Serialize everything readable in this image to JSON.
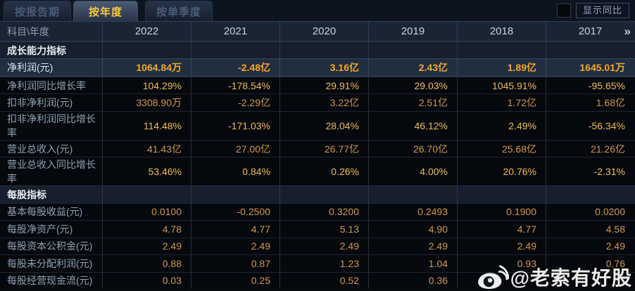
{
  "tabs": [
    {
      "label": "按报告期",
      "active": false
    },
    {
      "label": "按年度",
      "active": true
    },
    {
      "label": "按单季度",
      "active": false
    }
  ],
  "yoy_toggle": {
    "label": "显示同比",
    "checked": false
  },
  "table": {
    "corner_label": "科目\\年度",
    "years": [
      "2022",
      "2021",
      "2020",
      "2019",
      "2018",
      "2017"
    ],
    "more_icon": "»",
    "rows": [
      {
        "type": "section",
        "style": "",
        "label": "成长能力指标",
        "values": [
          "",
          "",
          "",
          "",
          "",
          ""
        ]
      },
      {
        "type": "data",
        "style": "highlight",
        "label": "净利润(元)",
        "values": [
          "1064.84万",
          "-2.48亿",
          "3.16亿",
          "2.43亿",
          "1.89亿",
          "1645.01万"
        ]
      },
      {
        "type": "data",
        "style": "pct",
        "label": "净利润同比增长率",
        "values": [
          "104.29%",
          "-178.54%",
          "29.91%",
          "29.03%",
          "1045.91%",
          "-95.65%"
        ]
      },
      {
        "type": "data",
        "style": "plain",
        "label": "扣非净利润(元)",
        "values": [
          "3308.90万",
          "-2.29亿",
          "3.22亿",
          "2.51亿",
          "1.72亿",
          "1.68亿"
        ]
      },
      {
        "type": "data",
        "style": "pct",
        "label": "扣非净利润同比增长率",
        "values": [
          "114.48%",
          "-171.03%",
          "28.04%",
          "46.12%",
          "2.49%",
          "-56.34%"
        ]
      },
      {
        "type": "data",
        "style": "plain",
        "label": "营业总收入(元)",
        "values": [
          "41.43亿",
          "27.00亿",
          "26.77亿",
          "26.70亿",
          "25.68亿",
          "21.26亿"
        ]
      },
      {
        "type": "data",
        "style": "pct",
        "label": "营业总收入同比增长率",
        "values": [
          "53.46%",
          "0.84%",
          "0.26%",
          "4.00%",
          "20.76%",
          "-2.31%"
        ]
      },
      {
        "type": "section",
        "style": "",
        "label": "每股指标",
        "values": [
          "",
          "",
          "",
          "",
          "",
          ""
        ]
      },
      {
        "type": "data",
        "style": "plain",
        "label": "基本每股收益(元)",
        "values": [
          "0.0100",
          "-0.2500",
          "0.3200",
          "0.2493",
          "0.1900",
          "0.0200"
        ]
      },
      {
        "type": "data",
        "style": "plain",
        "label": "每股净资产(元)",
        "values": [
          "4.78",
          "4.77",
          "5.13",
          "4.90",
          "4.77",
          "4.58"
        ]
      },
      {
        "type": "data",
        "style": "plain",
        "label": "每股资本公积金(元)",
        "values": [
          "2.49",
          "2.49",
          "2.49",
          "2.49",
          "2.49",
          "2.49"
        ]
      },
      {
        "type": "data",
        "style": "plain",
        "label": "每股未分配利润(元)",
        "values": [
          "0.88",
          "0.87",
          "1.23",
          "1.04",
          "0.93",
          "0.76"
        ]
      },
      {
        "type": "data",
        "style": "plain",
        "label": "每股经营现金流(元)",
        "values": [
          "0.03",
          "0.25",
          "0.52",
          "0.36",
          "",
          ""
        ]
      }
    ]
  },
  "watermark": {
    "text": "@老索有好股",
    "icon": "weibo-icon"
  },
  "colors": {
    "accent_yellow": "#f8c93e",
    "value_orange": "#d2964a",
    "percent_gold": "#eebb55",
    "highlight_value": "#f4a62a",
    "header_bg": "#1a2433",
    "section_bg": "#161f2b",
    "row_bg": "#05080d",
    "highlight_bg": "#202e40"
  }
}
